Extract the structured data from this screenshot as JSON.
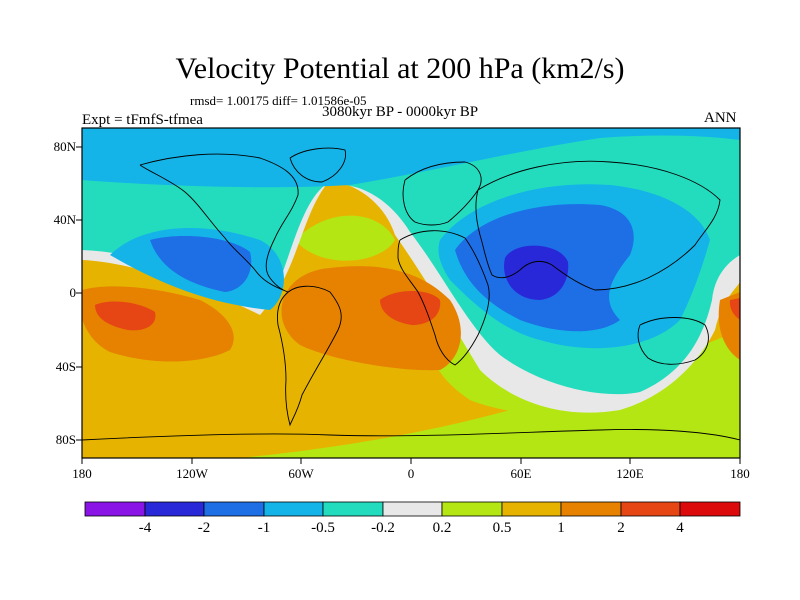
{
  "title": "Velocity Potential at 200 hPa (km2/s)",
  "stats": "rmsd= 1.00175  diff= 1.01586e-05",
  "experiment": "Expt = tFmfS-tfmea",
  "period": "3080kyr BP - 0000kyr BP",
  "season": "ANN",
  "lon_ticks": [
    "180",
    "120W",
    "60W",
    "0",
    "60E",
    "120E",
    "180"
  ],
  "lat_ticks": [
    "80N",
    "40N",
    "0",
    "40S",
    "80S"
  ],
  "colorbar": {
    "colors": [
      "#8a14e6",
      "#2828d8",
      "#1e6ee6",
      "#14b4e8",
      "#23dcbe",
      "#e8e8e8",
      "#b4e614",
      "#e6b400",
      "#e68200",
      "#e64614",
      "#dc0a0a"
    ],
    "labels": [
      "-4",
      "-2",
      "-1",
      "-0.5",
      "-0.2",
      "0.2",
      "0.5",
      "1",
      "2",
      "4"
    ]
  }
}
